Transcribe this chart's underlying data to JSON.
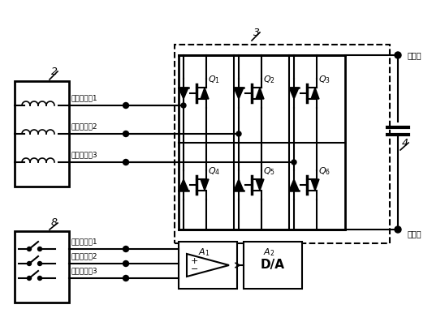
{
  "bg_color": "#ffffff",
  "line_color": "#000000",
  "text_color": "#000000",
  "figsize": [
    5.48,
    3.81
  ],
  "dpi": 100,
  "labels": {
    "block2": "2",
    "block3": "3",
    "block4": "4",
    "block8": "8",
    "current1": "电流控制端1",
    "current2": "电流控制端2",
    "current3": "电流控制端3",
    "voltage1": "电压控制端1",
    "voltage2": "电压控制端2",
    "voltage3": "电压控制端3",
    "Q1": "$Q_1$",
    "Q2": "$Q_2$",
    "Q3": "$Q_3$",
    "Q4": "$Q_4$",
    "Q5": "$Q_5$",
    "Q6": "$Q_6$",
    "A1": "$A_1$",
    "A2": "$A_2$",
    "DA": "D/A",
    "upper": "上桥端",
    "lower": "下桥端"
  }
}
